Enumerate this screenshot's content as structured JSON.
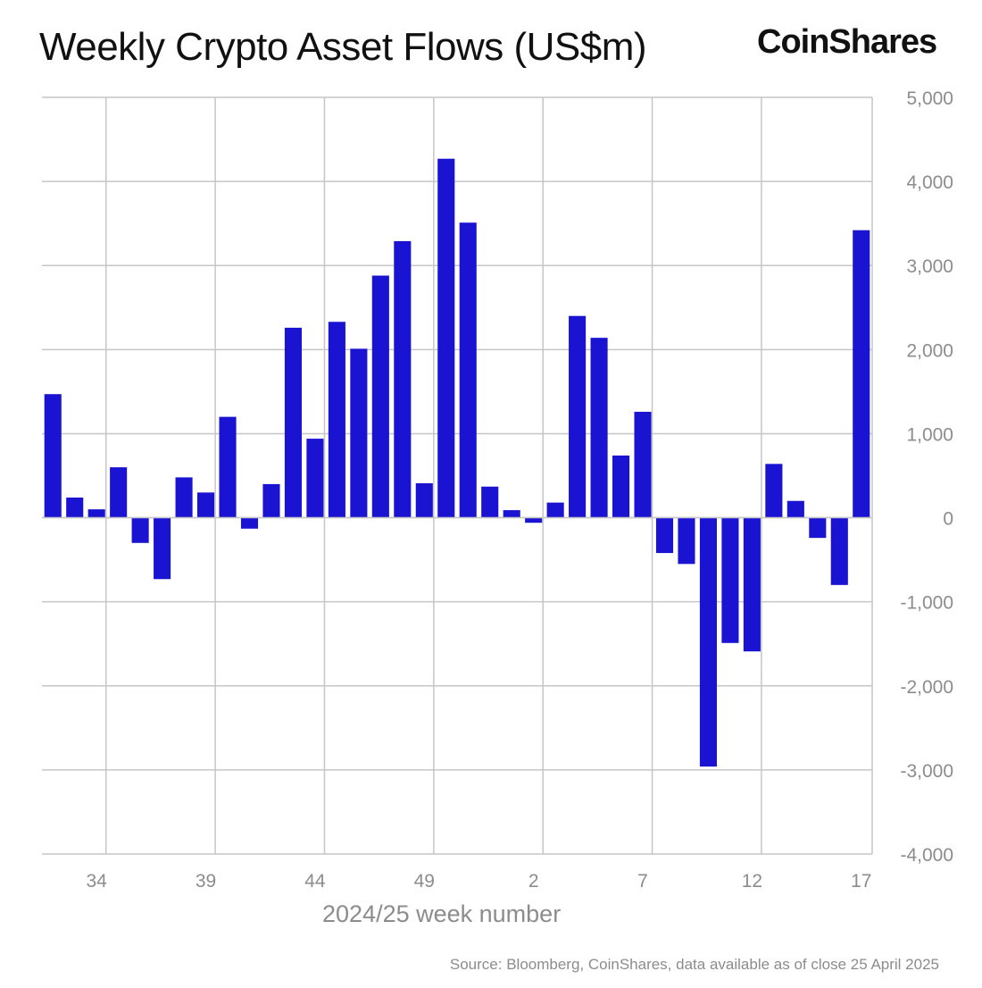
{
  "header": {
    "title": "Weekly Crypto Asset Flows (US$m)",
    "logo_text": "CoinShares"
  },
  "footer": {
    "source": "Source: Bloomberg, CoinShares, data available as of close 25 April 2025"
  },
  "colors": {
    "bar": "#1a14d2",
    "grid": "#c6c6c6",
    "axis_text": "#8c8c8c",
    "title_text": "#111111"
  },
  "chart_data": {
    "type": "bar",
    "title": "Weekly Crypto Asset Flows (US$m)",
    "xlabel": "2024/25 week number",
    "ylabel": "",
    "ylim": [
      -4000,
      5000
    ],
    "y_ticks": [
      5000,
      4000,
      3000,
      2000,
      1000,
      0,
      -1000,
      -2000,
      -3000,
      -4000
    ],
    "y_tick_labels": [
      "5,000",
      "4,000",
      "3,000",
      "2,000",
      "1,000",
      "0",
      "-1,000",
      "-2,000",
      "-3,000",
      "-4,000"
    ],
    "x_tick_labels": [
      "34",
      "39",
      "44",
      "49",
      "2",
      "7",
      "12",
      "17"
    ],
    "y_axis_side": "right",
    "grid": true,
    "legend": "none",
    "categories": [
      "32",
      "33",
      "34",
      "35",
      "36",
      "37",
      "38",
      "39",
      "40",
      "41",
      "42",
      "43",
      "44",
      "45",
      "46",
      "47",
      "48",
      "49",
      "50",
      "51",
      "52",
      "1",
      "2",
      "3",
      "4",
      "5",
      "6",
      "7",
      "8",
      "9",
      "10",
      "11",
      "12",
      "13",
      "14",
      "15",
      "16",
      "17"
    ],
    "values": [
      1470,
      240,
      100,
      600,
      -300,
      -730,
      480,
      300,
      1200,
      -130,
      400,
      2260,
      940,
      2330,
      2010,
      2880,
      3290,
      410,
      4270,
      3510,
      370,
      90,
      -60,
      180,
      2400,
      2140,
      740,
      1260,
      -420,
      -550,
      -2960,
      -1490,
      -1590,
      640,
      200,
      -240,
      -800,
      3420
    ]
  }
}
